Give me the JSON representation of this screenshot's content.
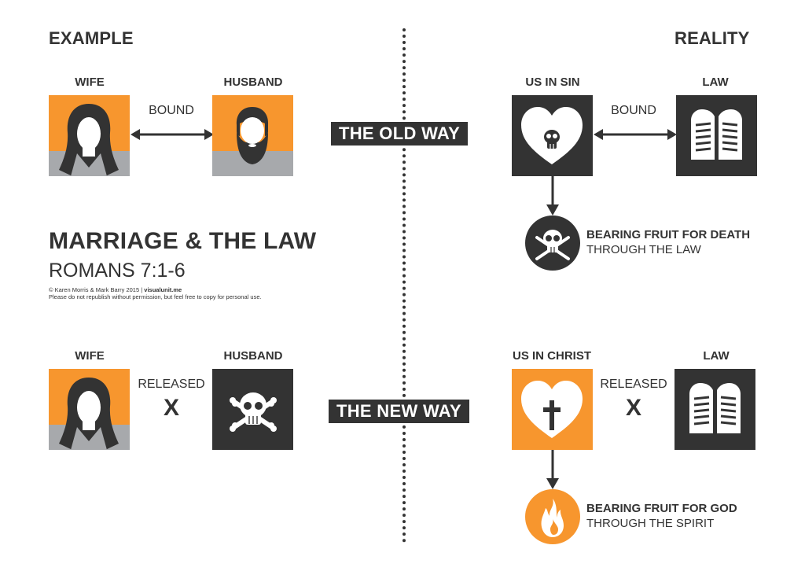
{
  "example": {
    "heading": "EXAMPLE",
    "top": {
      "wife_label": "WIFE",
      "husband_label": "HUSBAND",
      "relation": "BOUND"
    },
    "bottom": {
      "wife_label": "WIFE",
      "husband_label": "HUSBAND",
      "relation": "RELEASED",
      "mark": "X"
    }
  },
  "reality": {
    "heading": "REALITY",
    "top": {
      "left_label": "US IN SIN",
      "right_label": "LAW",
      "relation": "BOUND",
      "fruit_bold": "BEARING FRUIT FOR DEATH",
      "fruit_rest": "THROUGH THE LAW"
    },
    "bottom": {
      "left_label": "US IN CHRIST",
      "right_label": "LAW",
      "relation": "RELEASED",
      "mark": "X",
      "fruit_bold": "BEARING FRUIT FOR GOD",
      "fruit_rest": "THROUGH THE SPIRIT"
    }
  },
  "ways": {
    "old": "THE OLD WAY",
    "new": "THE NEW WAY"
  },
  "title": {
    "main": "MARRIAGE & THE LAW",
    "reference": "ROMANS 7:1-6",
    "credit": "© Karen Morris & Mark Barry 2015",
    "site": "visualunit.me",
    "notice": "Please do not republish without permission, but feel free to copy for personal use."
  },
  "colors": {
    "orange": "#F7962E",
    "dark": "#333333",
    "gray": "#A7A9AC",
    "white": "#FFFFFF"
  }
}
